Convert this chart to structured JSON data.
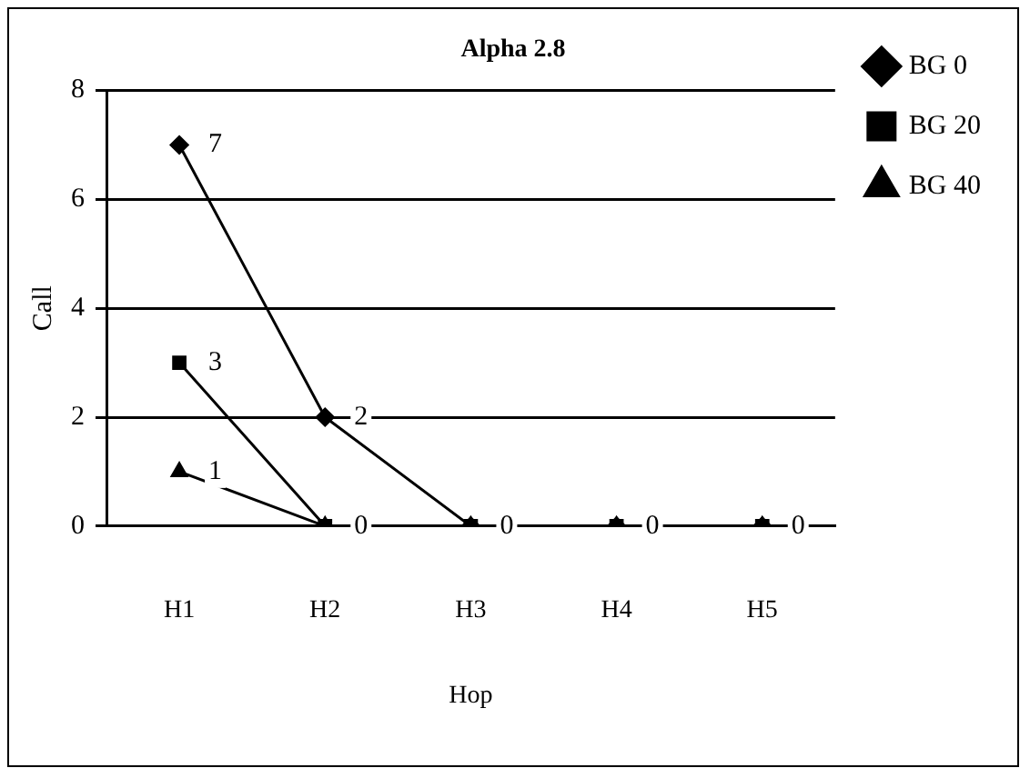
{
  "chart_data": {
    "type": "line",
    "title": "Alpha 2.8",
    "xlabel": "Hop",
    "ylabel": "Call",
    "categories": [
      "H1",
      "H2",
      "H3",
      "H4",
      "H5"
    ],
    "series": [
      {
        "name": "BG 0",
        "color": "#000000",
        "marker": "diamond",
        "values": [
          7,
          2,
          0,
          0,
          0
        ],
        "value_labels": [
          "7",
          "2",
          "0",
          "0",
          "0"
        ]
      },
      {
        "name": "BG 20",
        "color": "#000000",
        "marker": "square",
        "values": [
          3,
          0,
          0,
          0,
          0
        ],
        "value_labels": [
          "3",
          "0",
          null,
          null,
          null
        ]
      },
      {
        "name": "BG 40",
        "color": "#000000",
        "marker": "triangle",
        "values": [
          1,
          0,
          0,
          0,
          0
        ],
        "value_labels": [
          "1",
          null,
          null,
          null,
          null
        ]
      }
    ],
    "ylim": [
      0,
      8
    ],
    "yticks": [
      0,
      2,
      4,
      6,
      8
    ],
    "grid": "y",
    "legend": "top right"
  }
}
